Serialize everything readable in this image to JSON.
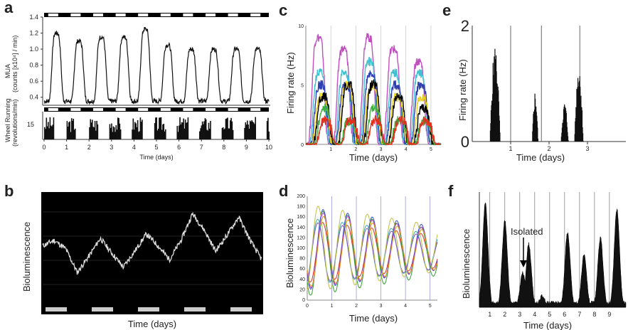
{
  "panels": {
    "a": {
      "letter": "a"
    },
    "b": {
      "letter": "b"
    },
    "c": {
      "letter": "c"
    },
    "d": {
      "letter": "d"
    },
    "e": {
      "letter": "e"
    },
    "f": {
      "letter": "f"
    }
  },
  "chart_data": [
    {
      "panel": "a",
      "type": "line",
      "xlabel": "Time (days)",
      "ylabel_top": "MUA",
      "ylabel_top_units": "(counts [x10⁴] / min)",
      "ylabel_bottom": "Wheel Running",
      "ylabel_bottom_units": "(revolutions/min)",
      "x_ticks": [
        "0",
        "1",
        "2",
        "3",
        "4",
        "5",
        "6",
        "7",
        "8",
        "9",
        "10"
      ],
      "y_ticks_top": [
        "0.4",
        "0.6",
        "0.8",
        "1.0",
        "1.2",
        "1.4"
      ],
      "y_ticks_bottom": [
        "15"
      ],
      "xlim": [
        0,
        10
      ],
      "ylim_top": [
        0.3,
        1.4
      ],
      "series": [
        {
          "panel_part": "MUA",
          "peak_x": [
            0.55,
            1.55,
            2.55,
            3.55,
            4.5,
            5.5,
            6.55,
            7.55,
            8.55,
            9.5
          ],
          "peak_y": [
            1.2,
            1.1,
            1.15,
            1.15,
            1.25,
            1.05,
            1.0,
            1.0,
            1.0,
            1.0
          ],
          "trough_y": 0.35
        }
      ],
      "wheel_running_bouts_days": [
        [
          0.0,
          0.4
        ],
        [
          1.0,
          1.4
        ],
        [
          2.0,
          2.4
        ],
        [
          2.9,
          3.4
        ],
        [
          3.9,
          4.35
        ],
        [
          4.9,
          5.4
        ],
        [
          5.9,
          6.4
        ],
        [
          6.9,
          7.4
        ],
        [
          7.9,
          8.4
        ],
        [
          8.9,
          9.4
        ],
        [
          9.9,
          10.0
        ]
      ]
    },
    {
      "panel": "b",
      "type": "line",
      "xlabel": "Time (days)",
      "ylabel": "Bioluminescence",
      "background": "#000000",
      "values": [
        0.55,
        0.6,
        0.52,
        0.3,
        0.45,
        0.62,
        0.48,
        0.35,
        0.5,
        0.66,
        0.55,
        0.42,
        0.6,
        0.85,
        0.7,
        0.5,
        0.65,
        0.82,
        0.6,
        0.42
      ],
      "light_bars": 5
    },
    {
      "panel": "c",
      "type": "line",
      "xlabel": "Time (days)",
      "ylabel": "Firing rate (Hz)",
      "x_ticks": [
        "1",
        "2",
        "3",
        "4",
        "5"
      ],
      "y_ticks": [
        "0",
        "5",
        "10"
      ],
      "xlim": [
        0,
        5.4
      ],
      "ylim": [
        0,
        10
      ],
      "series_colors": [
        "#c050c0",
        "#40c0d0",
        "#3040b0",
        "#e8d020",
        "#000000",
        "#40b040",
        "#e03020"
      ],
      "series_peaks": [
        [
          9,
          8,
          9,
          8,
          7
        ],
        [
          6,
          6,
          7,
          6,
          6
        ],
        [
          5,
          5,
          6,
          5,
          5
        ],
        [
          4,
          5,
          5,
          4,
          4
        ],
        [
          4,
          5,
          5,
          4,
          3
        ],
        [
          3,
          2,
          3,
          2,
          2
        ],
        [
          2,
          2,
          2,
          2,
          2
        ]
      ]
    },
    {
      "panel": "d",
      "type": "line",
      "xlabel": "Time (days)",
      "ylabel": "Bioluminescence",
      "x_ticks": [
        "0",
        "1",
        "2",
        "3",
        "4",
        "5"
      ],
      "y_ticks": [
        "0",
        "20",
        "40",
        "60",
        "80",
        "100",
        "120",
        "140",
        "160",
        "180",
        "200"
      ],
      "xlim": [
        0,
        5.3
      ],
      "ylim": [
        0,
        200
      ],
      "series_colors": [
        "#e03030",
        "#30a030",
        "#3050d0",
        "#c040c0",
        "#e0a020",
        "#40b0b0",
        "#8050c0",
        "#c0c040"
      ]
    },
    {
      "panel": "e",
      "type": "bar",
      "xlabel": "Time (days)",
      "ylabel": "Firing rate (Hz)",
      "x_ticks": [
        "1",
        "2",
        "3"
      ],
      "y_ticks": [
        "0",
        "2"
      ],
      "xlim": [
        0,
        4
      ],
      "ylim": [
        0,
        2
      ],
      "bursts": [
        [
          0.45,
          0.8,
          1.7
        ],
        [
          1.55,
          1.75,
          0.9
        ],
        [
          2.3,
          2.55,
          0.7
        ],
        [
          2.65,
          2.95,
          1.4
        ]
      ]
    },
    {
      "panel": "f",
      "type": "area",
      "xlabel": "Time (days)",
      "ylabel": "Bioluminescence",
      "annotation": "Isolated",
      "x_ticks": [
        "1",
        "2",
        "3",
        "4",
        "5",
        "6",
        "7",
        "8",
        "9"
      ],
      "xlim": [
        0,
        9.8
      ],
      "peaks": [
        [
          0.4,
          0.9
        ],
        [
          1.7,
          0.75
        ],
        [
          2.9,
          0.3
        ],
        [
          3.3,
          0.55
        ],
        [
          4.2,
          0.1
        ],
        [
          5.9,
          0.65
        ],
        [
          7.0,
          0.45
        ],
        [
          8.1,
          0.6
        ],
        [
          9.2,
          0.85
        ]
      ]
    }
  ]
}
